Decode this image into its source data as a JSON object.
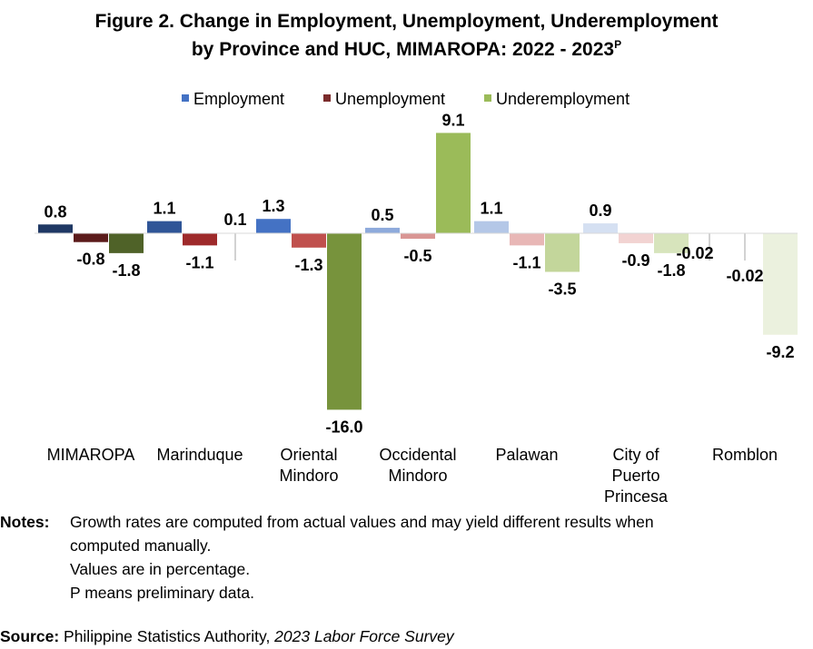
{
  "title": {
    "line1": "Figure 2. Change in Employment, Unemployment, Underemployment",
    "line2": "by Province and HUC, MIMAROPA: 2022 - 2023",
    "superscript": "P"
  },
  "chart_data": {
    "type": "bar",
    "categories": [
      [
        "MIMAROPA"
      ],
      [
        "Marinduque"
      ],
      [
        "Oriental",
        "Mindoro"
      ],
      [
        "Occidental",
        "Mindoro"
      ],
      [
        "Palawan"
      ],
      [
        "City of",
        "Puerto",
        "Princesa"
      ],
      [
        "Romblon"
      ]
    ],
    "series": [
      {
        "name": "Employment",
        "values": [
          0.8,
          1.1,
          1.3,
          0.5,
          1.1,
          0.9,
          -0.02
        ],
        "labels": [
          "0.8",
          "1.1",
          "1.3",
          "0.5",
          "1.1",
          "0.9",
          "-0.02"
        ]
      },
      {
        "name": "Unemployment",
        "values": [
          -0.8,
          -1.1,
          -1.3,
          -0.5,
          -1.1,
          -0.9,
          -0.02
        ],
        "labels": [
          "-0.8",
          "-1.1",
          "-1.3",
          "-0.5",
          "-1.1",
          "-0.9",
          "-0.02"
        ]
      },
      {
        "name": "Underemployment",
        "values": [
          -1.8,
          0.1,
          -16.0,
          9.1,
          -3.5,
          -1.8,
          -9.2
        ],
        "labels": [
          "-1.8",
          "0.1",
          "-16.0",
          "9.1",
          "-3.5",
          "-1.8",
          "-9.2"
        ]
      }
    ],
    "colors": {
      "Employment": [
        "#1f3864",
        "#2f5597",
        "#4472c4",
        "#8eaadb",
        "#b4c7e7",
        "#d5e0f2",
        "#e9eff8"
      ],
      "Unemployment": [
        "#5b1b1b",
        "#9e2a2b",
        "#c0504d",
        "#d99694",
        "#e8b7b6",
        "#f2d3d2",
        "#f7e6e6"
      ],
      "Underemployment": [
        "#4f6228",
        "#6e8a37",
        "#77933c",
        "#9bbb59",
        "#c3d69b",
        "#d7e4bc",
        "#ebf1de"
      ]
    },
    "legend_colors": {
      "Employment": "#4472c4",
      "Unemployment": "#7b2c2c",
      "Underemployment": "#9bbb59"
    },
    "legend_position": "top",
    "ylim": [
      -16.0,
      9.1
    ],
    "grid": false
  },
  "notes": {
    "label": "Notes:",
    "lines": [
      "Growth rates are computed from actual values and may yield different results when",
      "computed manually.",
      "Values are in percentage.",
      "P means preliminary data."
    ]
  },
  "source": {
    "label": "Source:",
    "text": " Philippine Statistics Authority, ",
    "publication": "2023 Labor Force Survey"
  }
}
